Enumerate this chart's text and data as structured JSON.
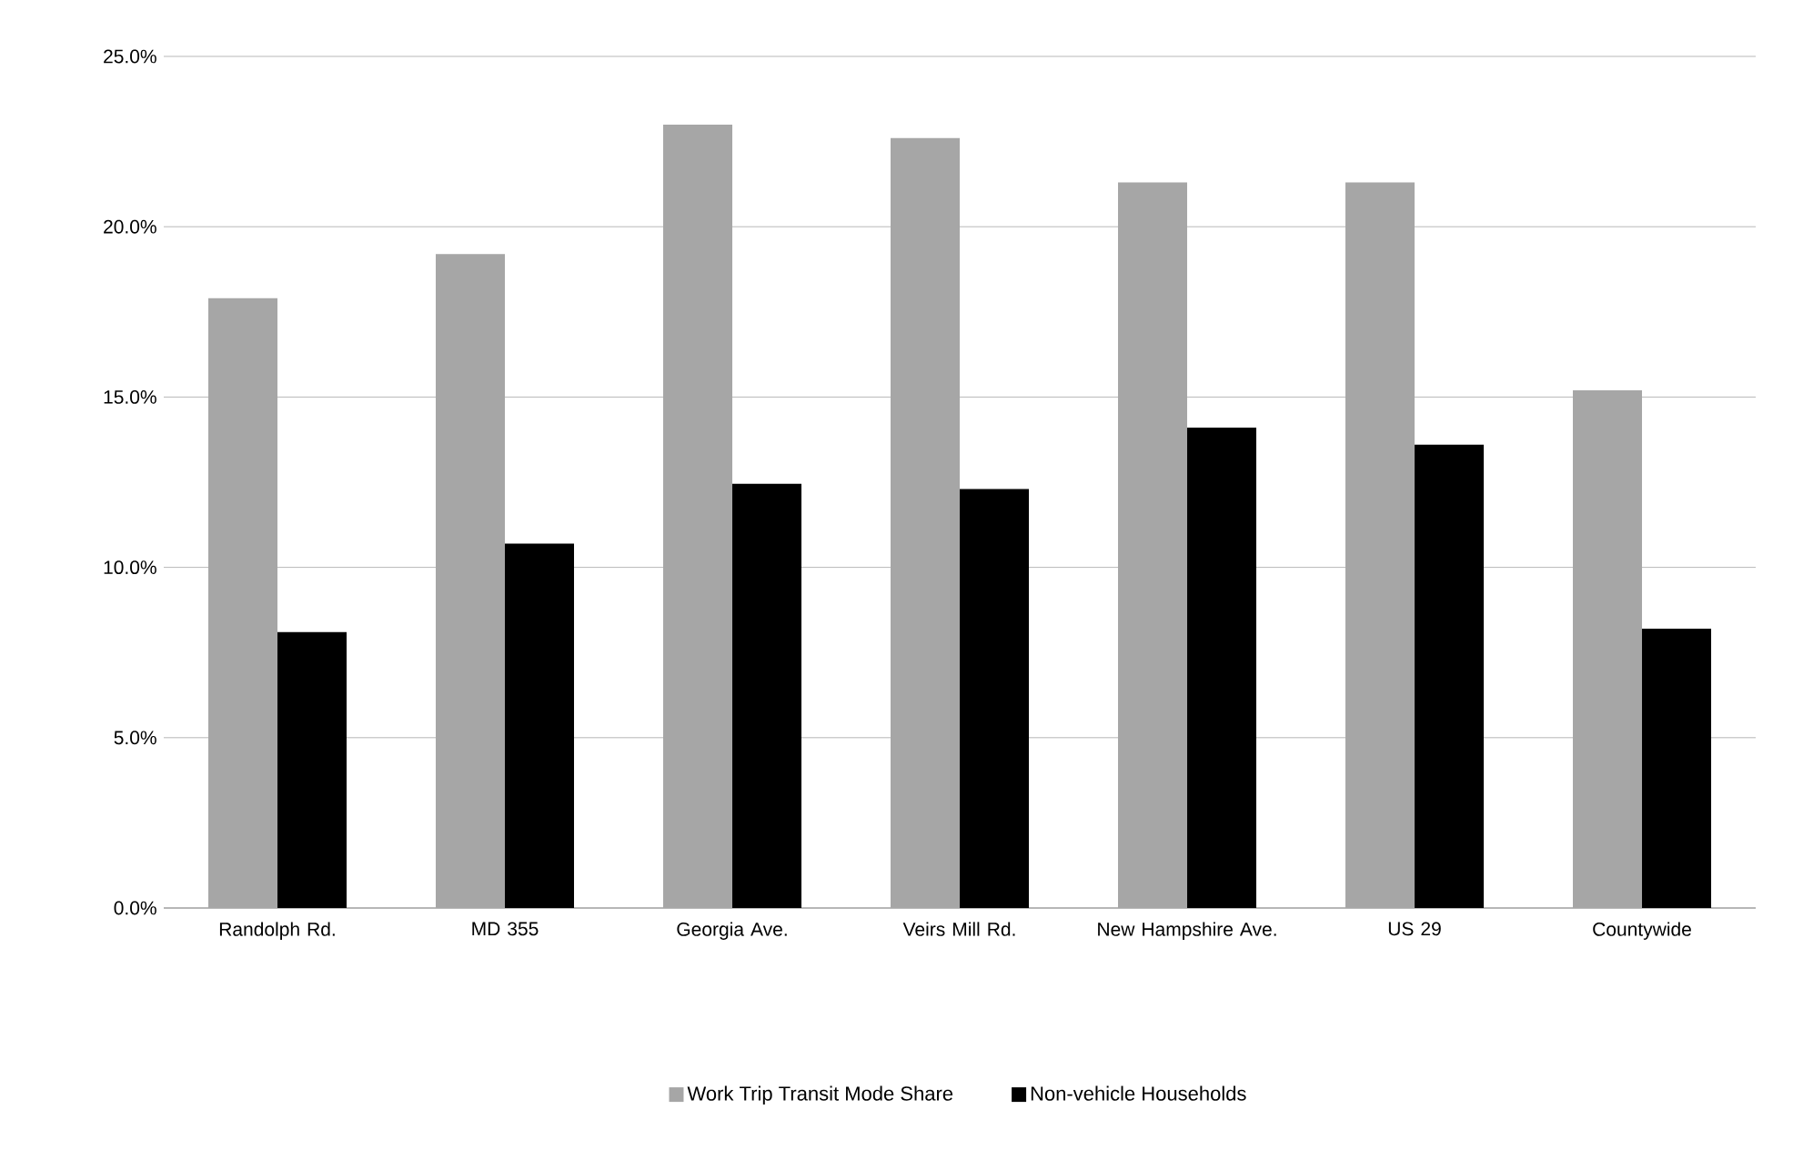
{
  "chart_data": {
    "type": "bar",
    "categories": [
      "Randolph Rd.",
      "MD 355",
      "Georgia Ave.",
      "Veirs Mill Rd.",
      "New Hampshire Ave.",
      "US 29",
      "Countywide"
    ],
    "series": [
      {
        "name": "Work Trip Transit Mode Share",
        "color": "#a6a6a6",
        "values": [
          17.9,
          19.2,
          23.0,
          22.6,
          21.3,
          21.3,
          15.2
        ]
      },
      {
        "name": "Non-vehicle Households",
        "color": "#000000",
        "values": [
          8.1,
          10.7,
          12.45,
          12.3,
          14.1,
          13.6,
          8.2
        ]
      }
    ],
    "ylim": [
      0,
      25
    ],
    "yticks": [
      {
        "value": 0,
        "label": "0.0%"
      },
      {
        "value": 5,
        "label": "5.0%"
      },
      {
        "value": 10,
        "label": "10.0%"
      },
      {
        "value": 15,
        "label": "15.0%"
      },
      {
        "value": 20,
        "label": "20.0%"
      },
      {
        "value": 25,
        "label": "25.0%"
      }
    ],
    "grid": "y",
    "legend": "bottom"
  }
}
